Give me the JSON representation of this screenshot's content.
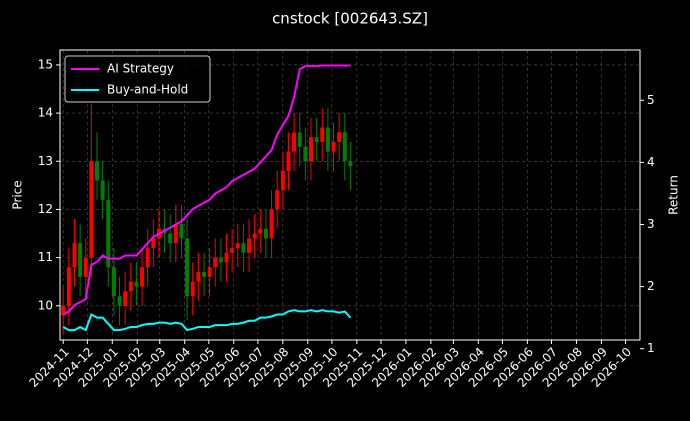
{
  "chart_data": {
    "type": "candlestick-line",
    "title": "cnstock [002643.SZ]",
    "y_label": "Price",
    "y2_label": "Return",
    "x": [
      "2024-11-01",
      "2024-11-08",
      "2024-11-15",
      "2024-11-22",
      "2024-11-29",
      "2024-12-06",
      "2024-12-13",
      "2024-12-20",
      "2024-12-27",
      "2025-01-03",
      "2025-01-10",
      "2025-01-17",
      "2025-01-24",
      "2025-01-31",
      "2025-02-07",
      "2025-02-14",
      "2025-02-21",
      "2025-02-28",
      "2025-03-07",
      "2025-03-14",
      "2025-03-21",
      "2025-03-28",
      "2025-04-04",
      "2025-04-11",
      "2025-04-18",
      "2025-04-25",
      "2025-05-02",
      "2025-05-09",
      "2025-05-16",
      "2025-05-23",
      "2025-05-30",
      "2025-06-06",
      "2025-06-13",
      "2025-06-20",
      "2025-06-27",
      "2025-07-04",
      "2025-07-11",
      "2025-07-18",
      "2025-07-25",
      "2025-08-01",
      "2025-08-08",
      "2025-08-15",
      "2025-08-22",
      "2025-08-29",
      "2025-09-05",
      "2025-09-12",
      "2025-09-19",
      "2025-09-26",
      "2025-10-03",
      "2025-10-10",
      "2025-10-17",
      "2025-10-24"
    ],
    "open": [
      9.8,
      10.0,
      10.8,
      11.3,
      10.6,
      11.0,
      13.0,
      12.6,
      12.2,
      10.8,
      10.2,
      10.0,
      10.3,
      10.5,
      10.4,
      10.8,
      11.2,
      11.4,
      11.6,
      11.5,
      11.3,
      11.7,
      11.4,
      10.2,
      10.5,
      10.7,
      10.6,
      10.8,
      11.0,
      10.9,
      11.1,
      11.2,
      11.3,
      11.1,
      11.4,
      11.5,
      11.6,
      11.4,
      12.0,
      12.4,
      12.8,
      13.2,
      13.6,
      13.3,
      13.0,
      13.5,
      13.4,
      13.7,
      13.2,
      13.4,
      13.6,
      13.0
    ],
    "high": [
      10.4,
      11.2,
      11.8,
      11.7,
      11.4,
      14.2,
      13.6,
      13.0,
      12.6,
      11.2,
      10.6,
      10.7,
      10.9,
      10.9,
      11.2,
      11.6,
      11.8,
      12.0,
      12.0,
      11.9,
      12.1,
      12.1,
      11.8,
      10.9,
      11.1,
      11.1,
      11.2,
      11.4,
      11.4,
      11.5,
      11.6,
      11.7,
      11.7,
      11.8,
      11.9,
      12.0,
      12.0,
      12.4,
      12.8,
      13.2,
      13.6,
      14.0,
      14.0,
      13.7,
      13.9,
      13.9,
      14.1,
      14.1,
      13.8,
      14.0,
      14.0,
      13.4
    ],
    "low": [
      9.4,
      9.6,
      10.4,
      10.2,
      10.2,
      10.6,
      12.2,
      11.8,
      10.4,
      9.8,
      9.6,
      9.6,
      9.9,
      10.0,
      10.0,
      10.4,
      10.8,
      11.0,
      11.1,
      10.9,
      10.9,
      11.0,
      9.7,
      9.8,
      10.1,
      10.2,
      10.2,
      10.4,
      10.5,
      10.5,
      10.7,
      10.8,
      10.7,
      10.7,
      11.0,
      11.1,
      11.0,
      11.0,
      11.6,
      12.0,
      12.4,
      12.8,
      12.9,
      12.6,
      12.6,
      13.0,
      13.0,
      12.8,
      12.8,
      13.0,
      12.6,
      12.4
    ],
    "close": [
      10.0,
      10.8,
      11.3,
      10.6,
      11.0,
      13.0,
      12.6,
      12.2,
      10.8,
      10.2,
      10.0,
      10.3,
      10.5,
      10.4,
      10.8,
      11.2,
      11.4,
      11.6,
      11.5,
      11.3,
      11.7,
      11.4,
      10.2,
      10.5,
      10.7,
      10.6,
      10.8,
      11.0,
      10.9,
      11.1,
      11.2,
      11.3,
      11.1,
      11.4,
      11.5,
      11.6,
      11.4,
      12.0,
      12.4,
      12.8,
      13.2,
      13.6,
      13.3,
      13.0,
      13.5,
      13.4,
      13.7,
      13.2,
      13.4,
      13.6,
      13.0,
      12.9
    ],
    "up_color": "#ff0000",
    "down_color": "#008000",
    "series": [
      {
        "name": "AI Strategy",
        "color": "#ff00ff",
        "axis": "y2",
        "values": [
          1.55,
          1.6,
          1.7,
          1.75,
          1.8,
          2.35,
          2.4,
          2.5,
          2.45,
          2.45,
          2.45,
          2.5,
          2.5,
          2.5,
          2.6,
          2.7,
          2.8,
          2.85,
          2.9,
          2.95,
          3.0,
          3.05,
          3.15,
          3.25,
          3.3,
          3.35,
          3.4,
          3.5,
          3.55,
          3.6,
          3.7,
          3.75,
          3.8,
          3.85,
          3.9,
          4.0,
          4.1,
          4.2,
          4.45,
          4.6,
          4.75,
          5.05,
          5.5,
          5.55,
          5.55,
          5.55,
          5.56,
          5.56,
          5.56,
          5.56,
          5.56,
          5.56
        ]
      },
      {
        "name": "Buy-and-Hold",
        "color": "#00ffff",
        "axis": "y2",
        "values": [
          1.35,
          1.3,
          1.3,
          1.35,
          1.3,
          1.55,
          1.5,
          1.5,
          1.4,
          1.3,
          1.3,
          1.32,
          1.35,
          1.35,
          1.38,
          1.4,
          1.4,
          1.42,
          1.42,
          1.4,
          1.42,
          1.4,
          1.3,
          1.32,
          1.35,
          1.35,
          1.35,
          1.38,
          1.38,
          1.38,
          1.4,
          1.4,
          1.42,
          1.45,
          1.45,
          1.5,
          1.5,
          1.52,
          1.55,
          1.55,
          1.6,
          1.62,
          1.6,
          1.6,
          1.62,
          1.6,
          1.62,
          1.6,
          1.6,
          1.58,
          1.6,
          1.5
        ]
      }
    ],
    "xlim": [
      "2024-10-28",
      "2026-10-19"
    ],
    "xticks": [
      {
        "value": "2024-11-01",
        "label": "2024-11"
      },
      {
        "value": "2024-12-01",
        "label": "2024-12"
      },
      {
        "value": "2025-01-01",
        "label": "2025-01"
      },
      {
        "value": "2025-02-01",
        "label": "2025-02"
      },
      {
        "value": "2025-03-01",
        "label": "2025-03"
      },
      {
        "value": "2025-04-01",
        "label": "2025-04"
      },
      {
        "value": "2025-05-01",
        "label": "2025-05"
      },
      {
        "value": "2025-06-01",
        "label": "2025-06"
      },
      {
        "value": "2025-07-01",
        "label": "2025-07"
      },
      {
        "value": "2025-08-01",
        "label": "2025-08"
      },
      {
        "value": "2025-09-01",
        "label": "2025-09"
      },
      {
        "value": "2025-10-01",
        "label": "2025-10"
      },
      {
        "value": "2025-11-01",
        "label": "2025-11"
      },
      {
        "value": "2025-12-01",
        "label": "2025-12"
      },
      {
        "value": "2026-01-01",
        "label": "2026-01"
      },
      {
        "value": "2026-02-01",
        "label": "2026-02"
      },
      {
        "value": "2026-03-01",
        "label": "2026-03"
      },
      {
        "value": "2026-04-01",
        "label": "2026-04"
      },
      {
        "value": "2026-05-01",
        "label": "2026-05"
      },
      {
        "value": "2026-06-01",
        "label": "2026-06"
      },
      {
        "value": "2026-07-01",
        "label": "2026-07"
      },
      {
        "value": "2026-08-01",
        "label": "2026-08"
      },
      {
        "value": "2026-09-01",
        "label": "2026-09"
      },
      {
        "value": "2026-10-01",
        "label": "2026-10"
      }
    ],
    "ylim": [
      9.29,
      15.31
    ],
    "yticks": [
      10,
      11,
      12,
      13,
      14,
      15
    ],
    "y2lim": [
      1.14,
      5.81
    ],
    "y2ticks": [
      1,
      2,
      3,
      4,
      5
    ],
    "grid": true,
    "legend": "upper left"
  }
}
